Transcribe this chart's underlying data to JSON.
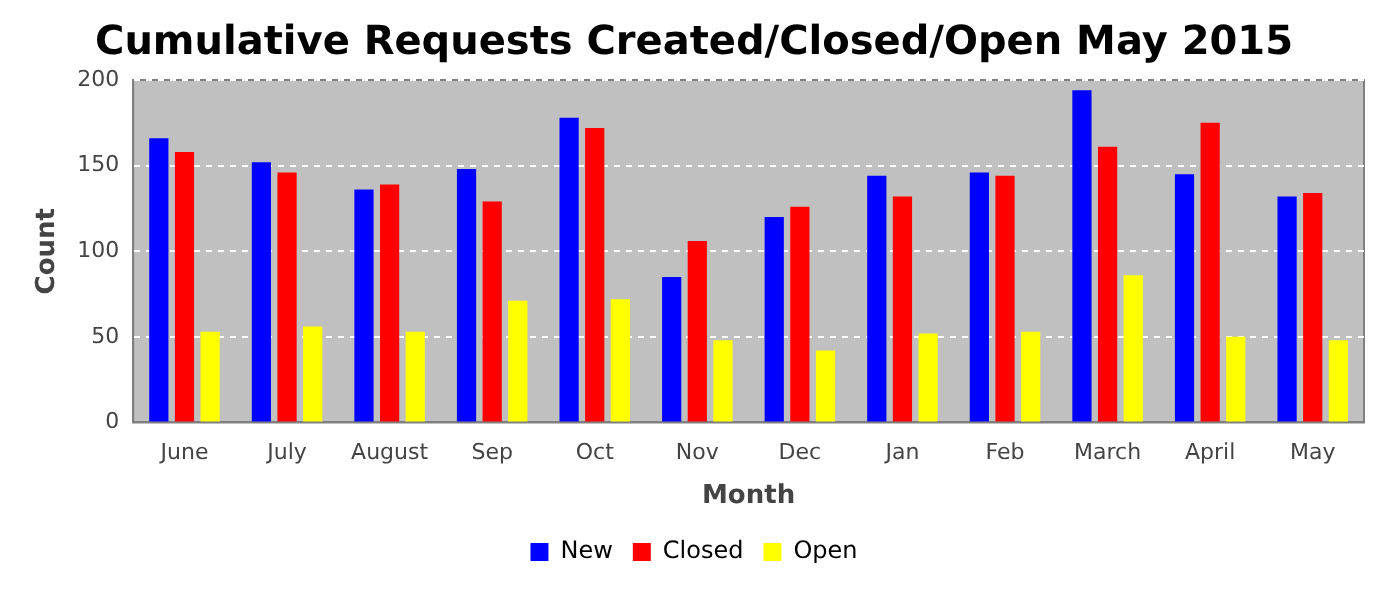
{
  "chart_data": {
    "type": "bar",
    "title": "Cumulative Requests Created/Closed/Open May 2015",
    "xlabel": "Month",
    "ylabel": "Count",
    "categories": [
      "June",
      "July",
      "August",
      "Sep",
      "Oct",
      "Nov",
      "Dec",
      "Jan",
      "Feb",
      "March",
      "April",
      "May"
    ],
    "series": [
      {
        "name": "New",
        "color": "#0000ff",
        "values": [
          166,
          152,
          136,
          148,
          178,
          85,
          120,
          144,
          146,
          194,
          145,
          132
        ]
      },
      {
        "name": "Closed",
        "color": "#ff0000",
        "values": [
          158,
          146,
          139,
          129,
          172,
          106,
          126,
          132,
          144,
          161,
          175,
          134
        ]
      },
      {
        "name": "Open",
        "color": "#ffff00",
        "values": [
          53,
          56,
          53,
          71,
          72,
          48,
          42,
          52,
          53,
          86,
          50,
          48
        ]
      }
    ],
    "ylim": [
      0,
      200
    ],
    "yticks": [
      0,
      50,
      100,
      150,
      200
    ],
    "grid": "y",
    "legend": "bottom"
  }
}
